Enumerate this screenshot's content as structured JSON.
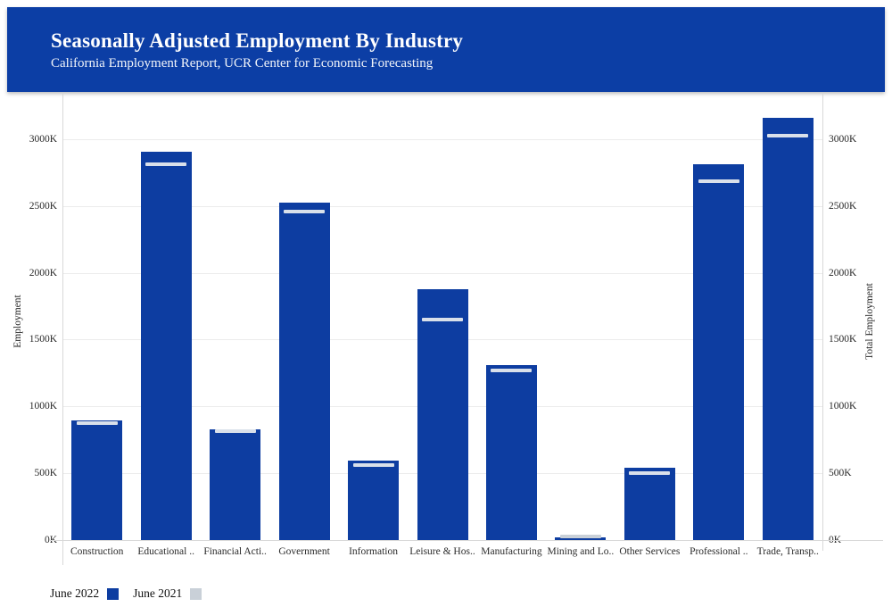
{
  "header": {
    "title": "Seasonally Adjusted Employment By Industry",
    "subtitle": "California Employment Report, UCR Center for Economic Forecasting"
  },
  "colors": {
    "header_bg": "#0c3ea5",
    "bar_blue": "#0d3da1",
    "prior_gray": "#c9d0d8",
    "prior_tick_on_bar": "#d9e0ea",
    "grid": "#ececec",
    "axis_text": "#2a2a2a"
  },
  "axes": {
    "left_title": "Employment",
    "right_title": "Total Employment",
    "tick_values_K": [
      0,
      500,
      1000,
      1500,
      2000,
      2500,
      3000
    ],
    "tick_labels": [
      "0K",
      "500K",
      "1000K",
      "1500K",
      "2000K",
      "2500K",
      "3000K"
    ]
  },
  "legend": {
    "items": [
      {
        "label": "June 2022",
        "color_key": "bar_blue"
      },
      {
        "label": "June 2021",
        "color_key": "prior_gray"
      }
    ]
  },
  "chart_data": {
    "type": "bar",
    "title": "Seasonally Adjusted Employment By Industry",
    "subtitle": "California Employment Report, UCR Center for Economic Forecasting",
    "categories": [
      "Construction",
      "Educational ..",
      "Financial Acti..",
      "Government",
      "Information",
      "Leisure & Hos..",
      "Manufacturing",
      "Mining and Lo..",
      "Other Services",
      "Professional ..",
      "Trade, Transp.."
    ],
    "series": [
      {
        "name": "June 2022",
        "style": "bar",
        "color": "#0d3da1",
        "values_K": [
          895,
          2910,
          830,
          2530,
          595,
          1880,
          1310,
          20,
          540,
          2815,
          3165
        ]
      },
      {
        "name": "June 2021",
        "style": "tick",
        "color": "#d9e0ea",
        "values_K": [
          875,
          2815,
          815,
          2465,
          565,
          1655,
          1275,
          25,
          505,
          2690,
          3035
        ]
      }
    ],
    "xlabel": "",
    "ylabel": "Employment",
    "ylabel_right": "Total Employment",
    "ylim_K": [
      0,
      3280
    ],
    "yticks_K": [
      0,
      500,
      1000,
      1500,
      2000,
      2500,
      3000
    ],
    "grid": true,
    "legend_position": "bottom-left"
  }
}
